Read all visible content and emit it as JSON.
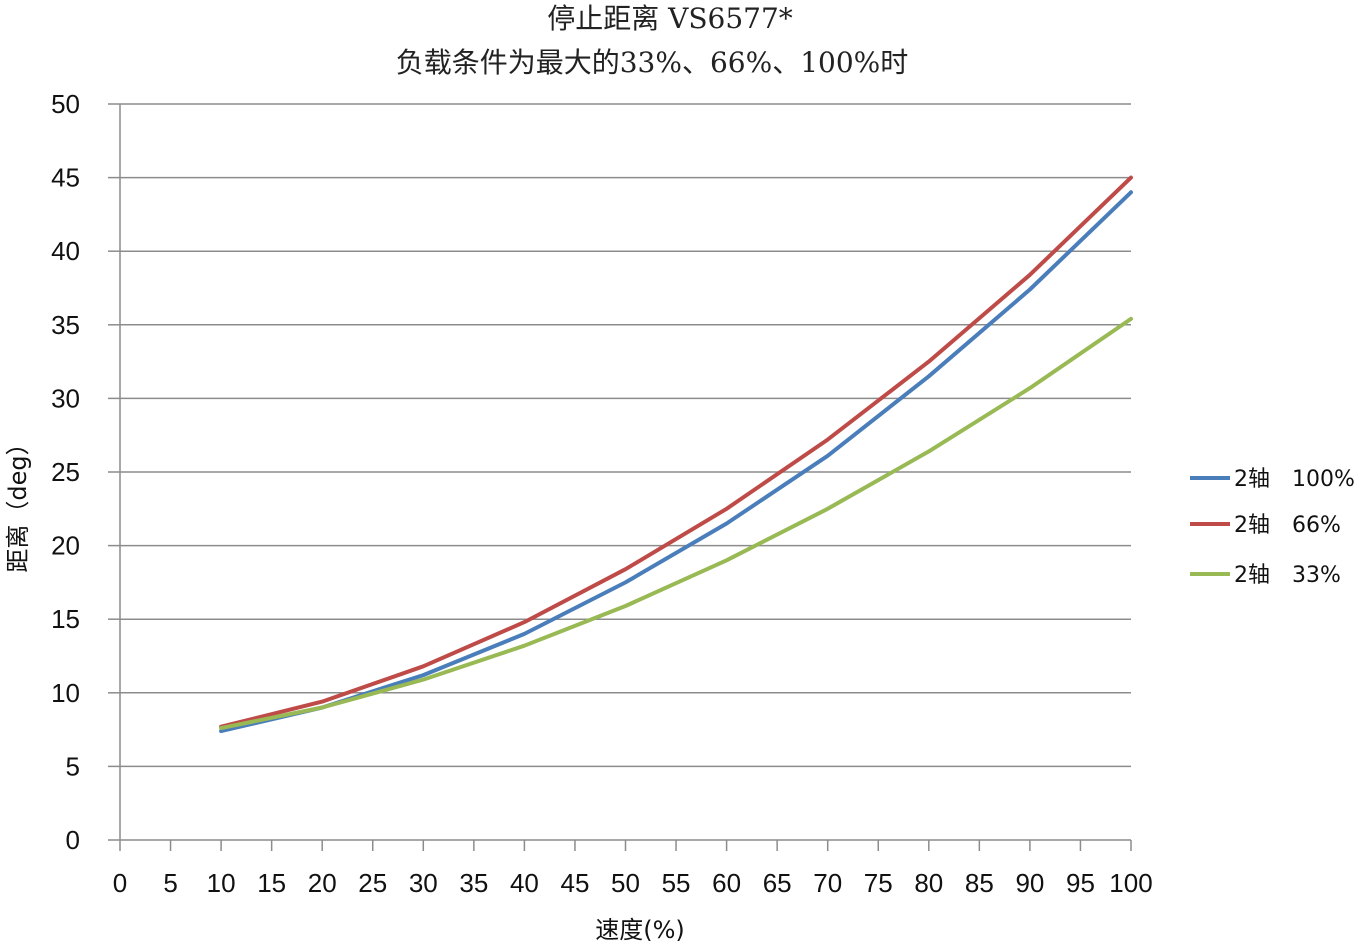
{
  "chart_data": {
    "type": "line",
    "title_line1": "停止距离 VS6577*",
    "title_line2": "负载条件为最大的33%、66%、100%时",
    "xlabel": "速度(%)",
    "ylabel": "距离（deg）",
    "xlim": [
      0,
      100
    ],
    "ylim": [
      0,
      50
    ],
    "x_ticks": [
      0,
      5,
      10,
      15,
      20,
      25,
      30,
      35,
      40,
      45,
      50,
      55,
      60,
      65,
      70,
      75,
      80,
      85,
      90,
      95,
      100
    ],
    "x_tick_labels": [
      "0",
      "5",
      "10",
      "15",
      "20",
      "25",
      "30",
      "35",
      "40",
      "45",
      "50",
      "55",
      "60",
      "65",
      "70",
      "75",
      "80",
      "85",
      "90",
      "95",
      "100"
    ],
    "y_ticks": [
      0,
      5,
      10,
      15,
      20,
      25,
      30,
      35,
      40,
      45,
      50
    ],
    "y_tick_labels": [
      "0",
      "5",
      "10",
      "15",
      "20",
      "25",
      "30",
      "35",
      "40",
      "45",
      "50"
    ],
    "grid": "horizontal",
    "legend_position": "right",
    "x": [
      10,
      20,
      30,
      40,
      50,
      60,
      70,
      80,
      90,
      100
    ],
    "series": [
      {
        "name": "2轴　100%",
        "color": "#4A7EBB",
        "values": [
          7.4,
          9.0,
          11.2,
          14.0,
          17.5,
          21.5,
          26.1,
          31.5,
          37.4,
          44.0
        ]
      },
      {
        "name": "2轴　66%",
        "color": "#BE4B48",
        "values": [
          7.7,
          9.4,
          11.8,
          14.8,
          18.4,
          22.5,
          27.2,
          32.5,
          38.4,
          45.0
        ]
      },
      {
        "name": "2轴　33%",
        "color": "#98B954",
        "values": [
          7.6,
          9.0,
          10.9,
          13.2,
          15.9,
          19.0,
          22.5,
          26.4,
          30.7,
          35.4
        ]
      }
    ]
  }
}
